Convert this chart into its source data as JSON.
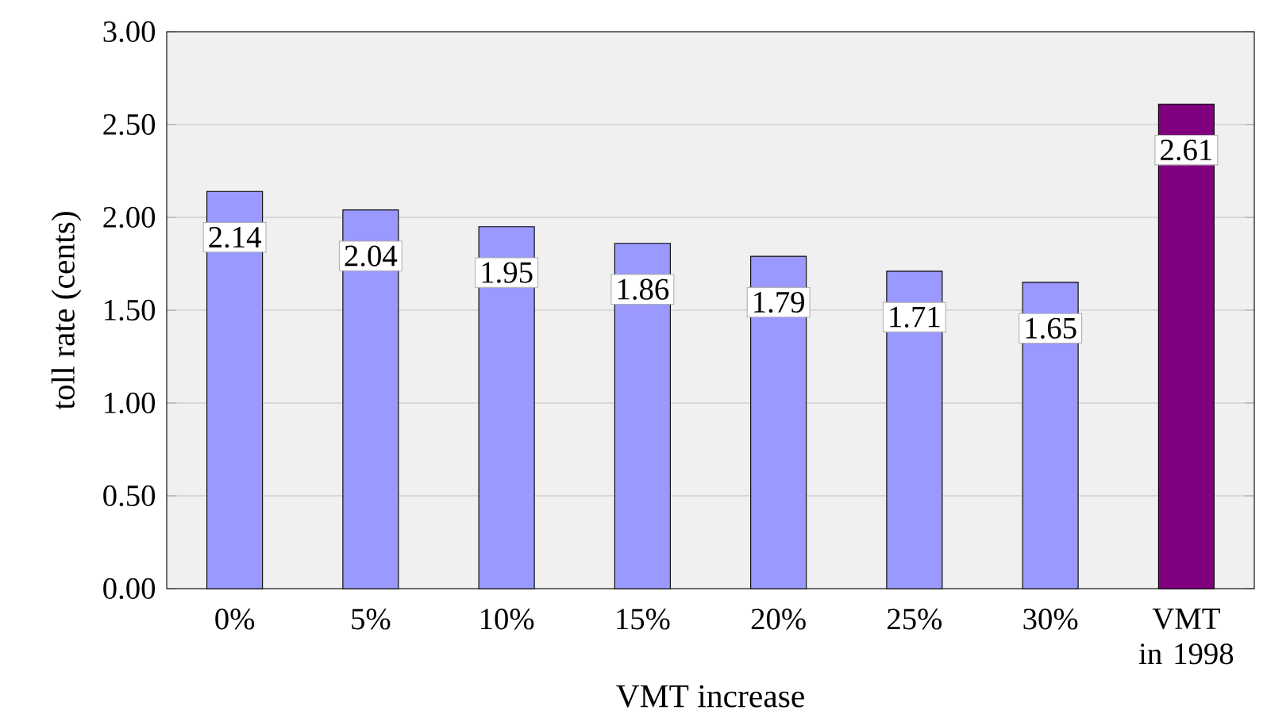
{
  "chart_data": {
    "type": "bar",
    "xlabel": "VMT increase",
    "ylabel": "toll rate (cents)",
    "categories": [
      "0%",
      "5%",
      "10%",
      "15%",
      "20%",
      "25%",
      "30%",
      "VMT in 1998"
    ],
    "values": [
      2.14,
      2.04,
      1.95,
      1.86,
      1.79,
      1.71,
      1.65,
      2.61
    ],
    "colors": [
      "#9999ff",
      "#9999ff",
      "#9999ff",
      "#9999ff",
      "#9999ff",
      "#9999ff",
      "#9999ff",
      "#800080"
    ],
    "ylim": [
      0,
      3
    ],
    "yticks": [
      {
        "value": 0,
        "label": "0.00"
      },
      {
        "value": 0.5,
        "label": "0.50"
      },
      {
        "value": 1,
        "label": "1.00"
      },
      {
        "value": 1.5,
        "label": "1.50"
      },
      {
        "value": 2,
        "label": "2.00"
      },
      {
        "value": 2.5,
        "label": "2.50"
      },
      {
        "value": 3,
        "label": "3.00"
      }
    ],
    "grid": "y",
    "data_labels": true
  }
}
